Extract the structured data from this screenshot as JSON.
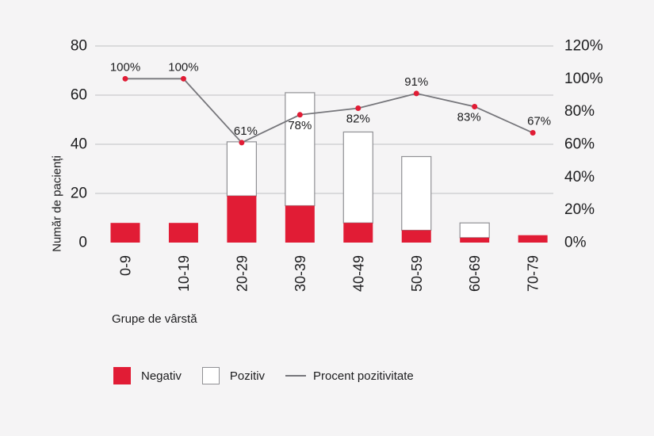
{
  "colors": {
    "background": "#f5f4f5",
    "grid": "#bfbfc3",
    "text": "#1c1c1e",
    "negative_red": "#e11c35",
    "positive_fill": "#ffffff",
    "positive_border": "#909094",
    "line_gray": "#76767b"
  },
  "chart_data": {
    "type": "combo",
    "bar_stacked": true,
    "grid": "horizontal",
    "legend_position": "bottom-left",
    "categories": [
      "0-9",
      "10-19",
      "20-29",
      "30-39",
      "40-49",
      "50-59",
      "60-69",
      "70-79"
    ],
    "series": [
      {
        "name": "Negativ",
        "type": "bar",
        "color": "#e11c35",
        "values": [
          8,
          8,
          19,
          15,
          8,
          5,
          2,
          3
        ]
      },
      {
        "name": "Pozitiv",
        "type": "bar",
        "color": "#ffffff",
        "border_color": "#909094",
        "values": [
          0,
          0,
          22,
          46,
          37,
          30,
          6,
          0
        ]
      },
      {
        "name": "Procent pozitivitate",
        "type": "line",
        "axis": "right",
        "color": "#76767b",
        "point_color": "#e11c35",
        "values": [
          100,
          100,
          61,
          78,
          82,
          91,
          83,
          67
        ],
        "labels": [
          "100%",
          "100%",
          "61%",
          "78%",
          "82%",
          "91%",
          "83%",
          "67%"
        ],
        "label_placement": [
          "above",
          "above",
          "above",
          "below",
          "below",
          "above",
          "below",
          "above"
        ],
        "label_dx": [
          0,
          0,
          5,
          0,
          0,
          0,
          -7,
          8
        ]
      }
    ],
    "xlabel": "Grupe de vârstă",
    "ylabel": "Număr de pacienți",
    "left_axis": {
      "max": 80,
      "gridlines": [
        20,
        40,
        60,
        80
      ],
      "ticks": [
        {
          "value": 0,
          "label": "0"
        },
        {
          "value": 20,
          "label": "20"
        },
        {
          "value": 40,
          "label": "40"
        },
        {
          "value": 60,
          "label": "60"
        },
        {
          "value": 80,
          "label": "80"
        }
      ]
    },
    "right_axis": {
      "max": 120,
      "ticks": [
        {
          "value": 0,
          "label": "0%"
        },
        {
          "value": 20,
          "label": "20%"
        },
        {
          "value": 40,
          "label": "40%"
        },
        {
          "value": 60,
          "label": "60%"
        },
        {
          "value": 80,
          "label": "80%"
        },
        {
          "value": 100,
          "label": "100%"
        },
        {
          "value": 120,
          "label": "120%"
        }
      ]
    }
  },
  "legend": {
    "items": [
      {
        "label": "Negativ",
        "swatch": "filled-square",
        "color": "#e11c35"
      },
      {
        "label": "Pozitiv",
        "swatch": "outlined-square",
        "color": "#ffffff",
        "border": "#909094"
      },
      {
        "label": "Procent pozitivitate",
        "swatch": "line",
        "color": "#76767b"
      }
    ]
  }
}
